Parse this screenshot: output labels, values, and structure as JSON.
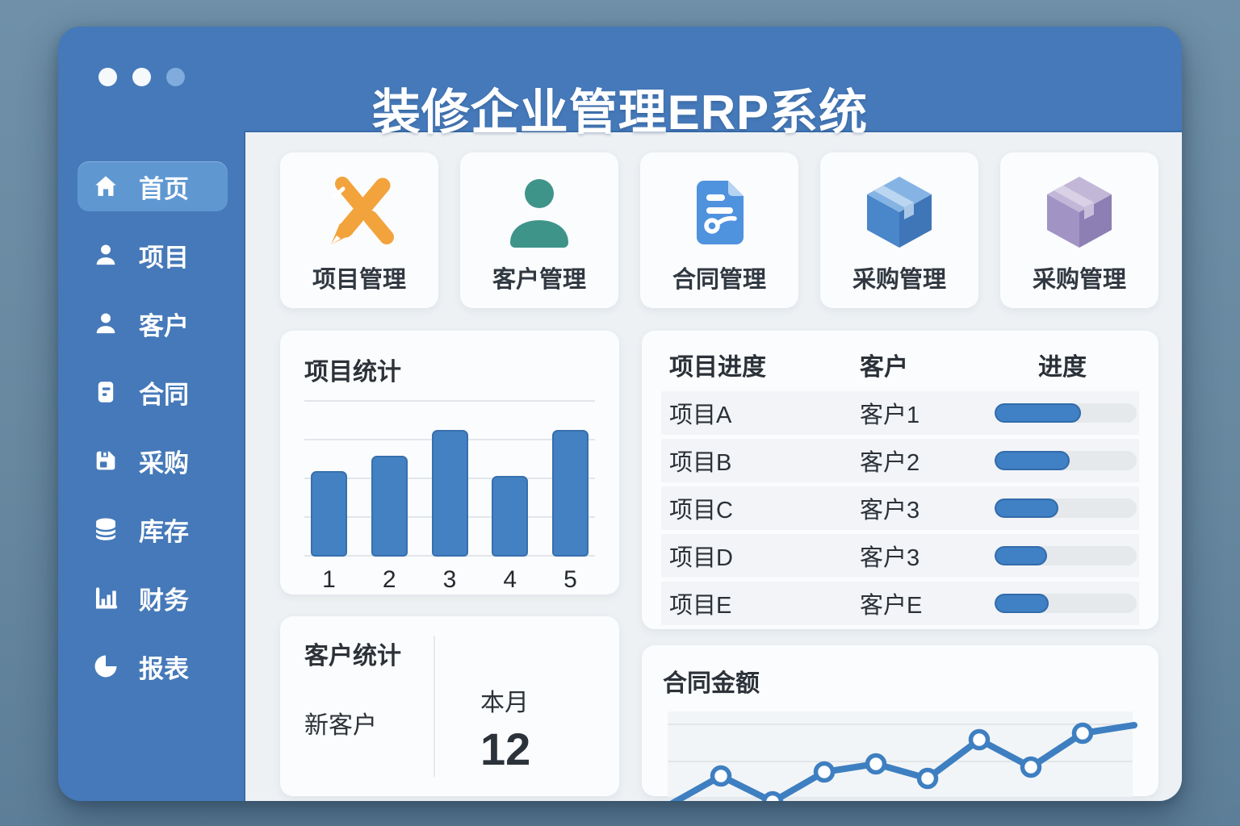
{
  "window": {
    "title": "装修企业管理ERP系统"
  },
  "colors": {
    "chrome_blue": "#4579b9",
    "active_item_blue": "#5f97d1",
    "accent_blue": "#4381c3",
    "progress_fill": "#4080c4",
    "line_blue": "#3e7fc1",
    "orange_icon": "#f2a33c",
    "teal_icon": "#3f948a",
    "contract_icon_blue": "#4f92dd",
    "cube_blue": "#4a86ca",
    "cube_purple": "#a193c4",
    "content_bg": "#edf1f4",
    "card_bg": "#fbfcfe"
  },
  "sidebar": {
    "items": [
      {
        "label": "首页",
        "icon": "home-icon",
        "active": true
      },
      {
        "label": "项目",
        "icon": "user-icon",
        "active": false
      },
      {
        "label": "客户",
        "icon": "user-icon",
        "active": false
      },
      {
        "label": "合同",
        "icon": "document-icon",
        "active": false
      },
      {
        "label": "采购",
        "icon": "save-icon",
        "active": false
      },
      {
        "label": "库存",
        "icon": "database-icon",
        "active": false
      },
      {
        "label": "财务",
        "icon": "bar-chart-icon",
        "active": false
      },
      {
        "label": "报表",
        "icon": "pie-chart-icon",
        "active": false
      }
    ]
  },
  "quick_actions": [
    {
      "label": "项目管理",
      "icon": "pencil-ruler-icon"
    },
    {
      "label": "客户管理",
      "icon": "person-icon"
    },
    {
      "label": "合同管理",
      "icon": "contract-icon"
    },
    {
      "label": "采购管理",
      "icon": "box-blue-icon"
    },
    {
      "label": "采购管理",
      "icon": "box-purple-icon"
    }
  ],
  "chart_data": [
    {
      "type": "bar",
      "title": "项目统计",
      "categories": [
        "1",
        "2",
        "3",
        "4",
        "5"
      ],
      "values": [
        55,
        65,
        82,
        52,
        82
      ],
      "xlabel": "",
      "ylabel": "",
      "ylim": [
        0,
        100
      ],
      "grid": true,
      "legend": "none",
      "bar_color": "#4381c3"
    },
    {
      "type": "line",
      "title": "合同金额",
      "x": [
        1,
        2,
        3,
        4,
        5,
        6,
        7,
        8,
        9,
        10
      ],
      "values": [
        4,
        38,
        8,
        42,
        52,
        35,
        80,
        48,
        88,
        97
      ],
      "marker_indices": [
        1,
        2,
        3,
        4,
        5,
        6,
        7,
        8
      ],
      "xlabel": "",
      "ylabel": "",
      "ylim": [
        0,
        100
      ],
      "grid": true,
      "legend": "none",
      "line_color": "#3e7fc1"
    }
  ],
  "progress_table": {
    "headers": [
      "项目进度",
      "客户",
      "进度"
    ],
    "rows": [
      {
        "project": "项目A",
        "customer": "客户1",
        "progress": 61
      },
      {
        "project": "项目B",
        "customer": "客户2",
        "progress": 53
      },
      {
        "project": "项目C",
        "customer": "客户3",
        "progress": 45
      },
      {
        "project": "项目D",
        "customer": "客户3",
        "progress": 37
      },
      {
        "project": "项目E",
        "customer": "客户E",
        "progress": 38
      }
    ]
  },
  "customer_stats": {
    "title": "客户统计",
    "metric_label": "新客户",
    "period_label": "本月",
    "value": "12"
  }
}
